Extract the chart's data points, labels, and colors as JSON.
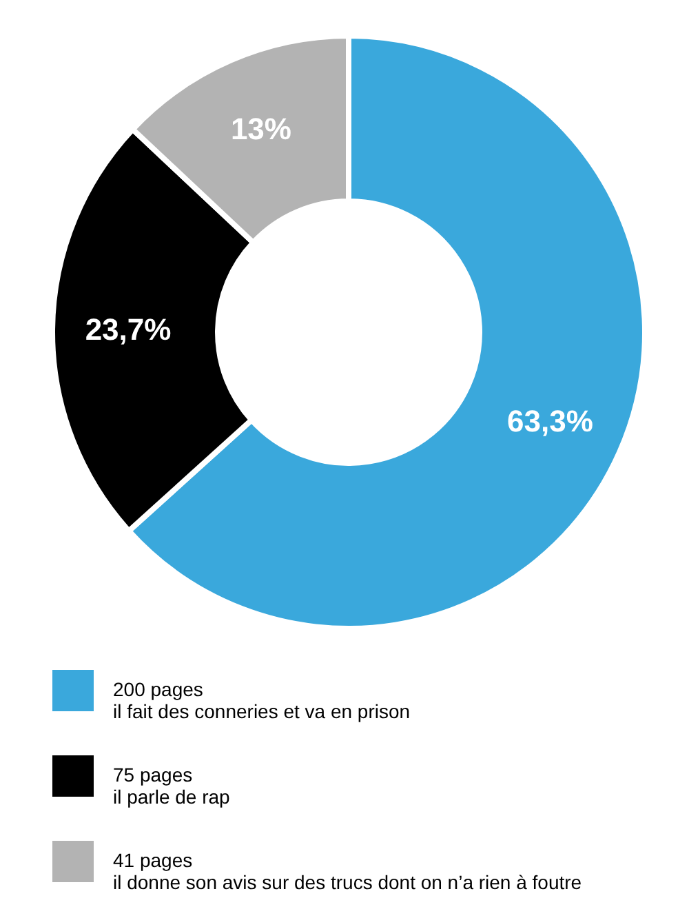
{
  "chart_data": {
    "type": "donut",
    "categories": [
      "200 pages\nil fait des conneries et va en prison",
      "75 pages\nil parle de rap",
      "41 pages\nil donne son avis sur des trucs dont on n’a rien à foutre"
    ],
    "values": [
      63.3,
      23.7,
      13
    ],
    "colors": [
      "#3aa8dc",
      "#000000",
      "#b3b3b3"
    ],
    "value_labels": [
      "63,3%",
      "23,7%",
      "13%"
    ],
    "legend": "bottom"
  }
}
